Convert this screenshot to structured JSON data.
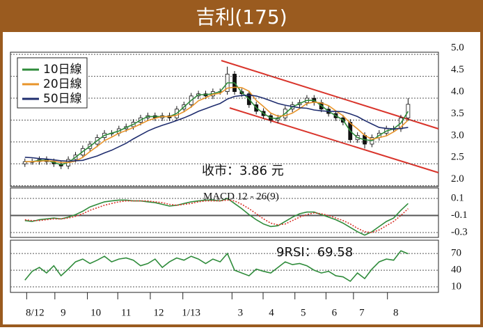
{
  "header": {
    "title": "吉利(175)"
  },
  "chart_data": [
    {
      "type": "candlestick",
      "x": [
        0,
        1,
        2,
        3,
        4,
        5,
        6,
        7,
        8,
        9,
        10,
        11,
        12,
        13,
        14,
        15,
        16,
        17,
        18,
        19,
        20,
        21,
        22,
        23,
        24,
        25,
        26,
        27,
        28,
        29,
        30,
        31,
        32,
        33,
        34,
        35,
        36,
        37,
        38,
        39,
        40,
        41,
        42,
        43,
        44,
        45,
        46,
        47,
        48,
        49,
        50,
        51,
        52,
        53
      ],
      "xlim": [
        -2,
        57.2
      ],
      "open": [
        2.5,
        2.55,
        2.55,
        2.6,
        2.55,
        2.5,
        2.45,
        2.6,
        2.7,
        2.85,
        2.95,
        3.1,
        3.2,
        3.2,
        3.3,
        3.35,
        3.45,
        3.55,
        3.6,
        3.55,
        3.6,
        3.55,
        3.75,
        3.85,
        4.05,
        4.1,
        4.05,
        4.15,
        4.15,
        4.55,
        4.15,
        4.1,
        3.85,
        3.7,
        3.6,
        3.5,
        3.55,
        3.75,
        3.85,
        3.9,
        4.0,
        3.9,
        3.75,
        3.65,
        3.55,
        3.45,
        3.05,
        3.15,
        2.95,
        3.1,
        3.2,
        3.3,
        3.3,
        3.55
      ],
      "high": [
        2.62,
        2.62,
        2.67,
        2.67,
        2.62,
        2.57,
        2.67,
        2.77,
        2.92,
        3.02,
        3.17,
        3.27,
        3.27,
        3.37,
        3.42,
        3.52,
        3.62,
        3.67,
        3.67,
        3.67,
        3.67,
        3.82,
        3.92,
        4.12,
        4.17,
        4.17,
        4.22,
        4.22,
        4.72,
        4.62,
        4.22,
        4.17,
        3.92,
        3.77,
        3.67,
        3.62,
        3.82,
        3.92,
        3.97,
        4.07,
        4.07,
        3.97,
        3.82,
        3.72,
        3.62,
        3.52,
        3.22,
        3.22,
        3.17,
        3.27,
        3.37,
        3.37,
        3.62,
        4.0
      ],
      "low": [
        2.43,
        2.48,
        2.48,
        2.48,
        2.43,
        2.38,
        2.38,
        2.53,
        2.63,
        2.78,
        2.88,
        3.03,
        3.13,
        3.13,
        3.23,
        3.28,
        3.38,
        3.48,
        3.48,
        3.48,
        3.48,
        3.48,
        3.68,
        3.78,
        3.98,
        3.98,
        3.98,
        4.08,
        4.08,
        4.08,
        4.03,
        3.78,
        3.63,
        3.53,
        3.43,
        3.43,
        3.48,
        3.68,
        3.78,
        3.83,
        3.83,
        3.68,
        3.58,
        3.48,
        3.38,
        2.98,
        2.98,
        2.85,
        2.88,
        3.03,
        3.13,
        3.23,
        3.23,
        3.48
      ],
      "close": [
        2.55,
        2.55,
        2.6,
        2.55,
        2.5,
        2.45,
        2.6,
        2.7,
        2.85,
        2.95,
        3.1,
        3.2,
        3.2,
        3.3,
        3.35,
        3.45,
        3.55,
        3.6,
        3.55,
        3.6,
        3.55,
        3.75,
        3.85,
        4.05,
        4.1,
        4.05,
        4.15,
        4.15,
        4.55,
        4.15,
        4.1,
        3.85,
        3.7,
        3.6,
        3.5,
        3.55,
        3.75,
        3.85,
        3.9,
        4.0,
        3.9,
        3.75,
        3.65,
        3.55,
        3.45,
        3.05,
        3.15,
        2.95,
        3.1,
        3.2,
        3.3,
        3.3,
        3.55,
        3.86
      ],
      "candle_color": "#111111",
      "series": [
        {
          "name": "10日線",
          "color": "#2e8b3a",
          "values": [
            2.55,
            2.55,
            2.58,
            2.58,
            2.53,
            2.48,
            2.53,
            2.65,
            2.78,
            2.9,
            3.03,
            3.15,
            3.2,
            3.25,
            3.33,
            3.4,
            3.5,
            3.58,
            3.58,
            3.58,
            3.58,
            3.65,
            3.8,
            3.95,
            4.08,
            4.08,
            4.1,
            4.15,
            4.35,
            4.35,
            4.13,
            3.98,
            3.78,
            3.65,
            3.55,
            3.53,
            3.65,
            3.8,
            3.88,
            3.95,
            3.95,
            3.83,
            3.7,
            3.6,
            3.5,
            3.25,
            3.1,
            3.05,
            3.03,
            3.15,
            3.25,
            3.3,
            3.43,
            3.7
          ]
        },
        {
          "name": "20日線",
          "color": "#e8942a",
          "values": [
            2.55,
            2.55,
            2.56,
            2.57,
            2.56,
            2.53,
            2.53,
            2.56,
            2.65,
            2.78,
            2.9,
            3.03,
            3.11,
            3.2,
            3.26,
            3.33,
            3.41,
            3.49,
            3.54,
            3.58,
            3.58,
            3.61,
            3.69,
            3.8,
            3.94,
            4.01,
            4.09,
            4.11,
            4.23,
            4.25,
            4.24,
            4.16,
            3.95,
            3.81,
            3.66,
            3.59,
            3.6,
            3.66,
            3.76,
            3.88,
            3.91,
            3.89,
            3.83,
            3.71,
            3.6,
            3.43,
            3.3,
            3.15,
            3.06,
            3.1,
            3.14,
            3.23,
            3.34,
            3.5
          ]
        },
        {
          "name": "50日線",
          "color": "#1f2d6e",
          "values": [
            2.65,
            2.64,
            2.62,
            2.61,
            2.59,
            2.57,
            2.56,
            2.57,
            2.58,
            2.63,
            2.68,
            2.75,
            2.81,
            2.89,
            2.97,
            3.07,
            3.16,
            3.25,
            3.32,
            3.38,
            3.43,
            3.49,
            3.55,
            3.62,
            3.7,
            3.76,
            3.82,
            3.88,
            3.98,
            4.04,
            4.06,
            4.07,
            4.05,
            4.0,
            3.94,
            3.88,
            3.84,
            3.81,
            3.78,
            3.77,
            3.73,
            3.71,
            3.7,
            3.7,
            3.69,
            3.64,
            3.58,
            3.49,
            3.41,
            3.33,
            3.31,
            3.3,
            3.31,
            3.33
          ]
        }
      ],
      "ylim": [
        1.98,
        5.05
      ],
      "yticks": [
        {
          "value": 2,
          "label": "2.0"
        },
        2.5,
        {
          "value": 3,
          "label": "3.0"
        },
        3.5,
        {
          "value": 4,
          "label": "4.0"
        },
        4.5,
        {
          "value": 5,
          "label": "5.0"
        }
      ],
      "annotation": "收市：3.86 元",
      "legend": "top-left"
    },
    {
      "type": "line",
      "title": "MACD 12 - 26(9)",
      "series": [
        {
          "color": "#2e8b3a",
          "line_style": "solid",
          "values": [
            -0.16,
            -0.17,
            -0.15,
            -0.14,
            -0.13,
            -0.14,
            -0.12,
            -0.09,
            -0.05,
            0.0,
            0.03,
            0.06,
            0.07,
            0.08,
            0.08,
            0.07,
            0.07,
            0.06,
            0.05,
            0.03,
            0.01,
            0.02,
            0.04,
            0.06,
            0.07,
            0.08,
            0.08,
            0.07,
            0.1,
            0.04,
            -0.02,
            -0.09,
            -0.15,
            -0.2,
            -0.23,
            -0.22,
            -0.17,
            -0.12,
            -0.08,
            -0.06,
            -0.06,
            -0.09,
            -0.12,
            -0.15,
            -0.19,
            -0.24,
            -0.29,
            -0.33,
            -0.29,
            -0.23,
            -0.17,
            -0.13,
            -0.04,
            0.04
          ]
        },
        {
          "color": "#d9342b",
          "line_style": "dotted",
          "values": [
            -0.15,
            -0.16,
            -0.16,
            -0.15,
            -0.14,
            -0.14,
            -0.13,
            -0.11,
            -0.08,
            -0.04,
            -0.01,
            0.02,
            0.04,
            0.06,
            0.07,
            0.07,
            0.07,
            0.07,
            0.06,
            0.05,
            0.03,
            0.02,
            0.03,
            0.04,
            0.06,
            0.07,
            0.07,
            0.07,
            0.08,
            0.07,
            0.03,
            -0.02,
            -0.08,
            -0.14,
            -0.19,
            -0.21,
            -0.2,
            -0.16,
            -0.12,
            -0.09,
            -0.07,
            -0.08,
            -0.1,
            -0.13,
            -0.16,
            -0.2,
            -0.25,
            -0.29,
            -0.3,
            -0.27,
            -0.22,
            -0.17,
            -0.1,
            -0.02
          ]
        }
      ],
      "ylim": [
        -0.357,
        0.222
      ],
      "yticks": [
        0.1,
        -0.1,
        -0.3
      ]
    },
    {
      "type": "line",
      "annotation": "9RSI：69.58",
      "series": [
        {
          "color": "#2e8b3a",
          "line_style": "solid",
          "values": [
            22,
            38,
            45,
            35,
            48,
            30,
            42,
            55,
            60,
            52,
            58,
            65,
            55,
            60,
            62,
            58,
            48,
            52,
            60,
            45,
            55,
            62,
            58,
            65,
            60,
            52,
            60,
            55,
            70,
            40,
            35,
            30,
            42,
            38,
            35,
            45,
            55,
            50,
            52,
            48,
            40,
            35,
            38,
            30,
            28,
            20,
            35,
            25,
            42,
            55,
            60,
            58,
            75,
            69.58
          ]
        }
      ],
      "ylim": [
        0,
        94
      ],
      "yticks": [
        10,
        40,
        70
      ],
      "xticks": [
        {
          "value": 1.4,
          "label": "8/12"
        },
        {
          "value": 5.3,
          "label": "9"
        },
        {
          "value": 9.8,
          "label": "10"
        },
        {
          "value": 14,
          "label": "11"
        },
        {
          "value": 18.5,
          "label": "12"
        },
        {
          "value": 23,
          "label": "1/13"
        },
        {
          "value": 29.8,
          "label": "3"
        },
        {
          "value": 34.1,
          "label": "4"
        },
        {
          "value": 38.5,
          "label": "5"
        },
        {
          "value": 42.8,
          "label": "6"
        },
        {
          "value": 46.6,
          "label": "7"
        },
        {
          "value": 51.3,
          "label": "8"
        }
      ]
    }
  ]
}
